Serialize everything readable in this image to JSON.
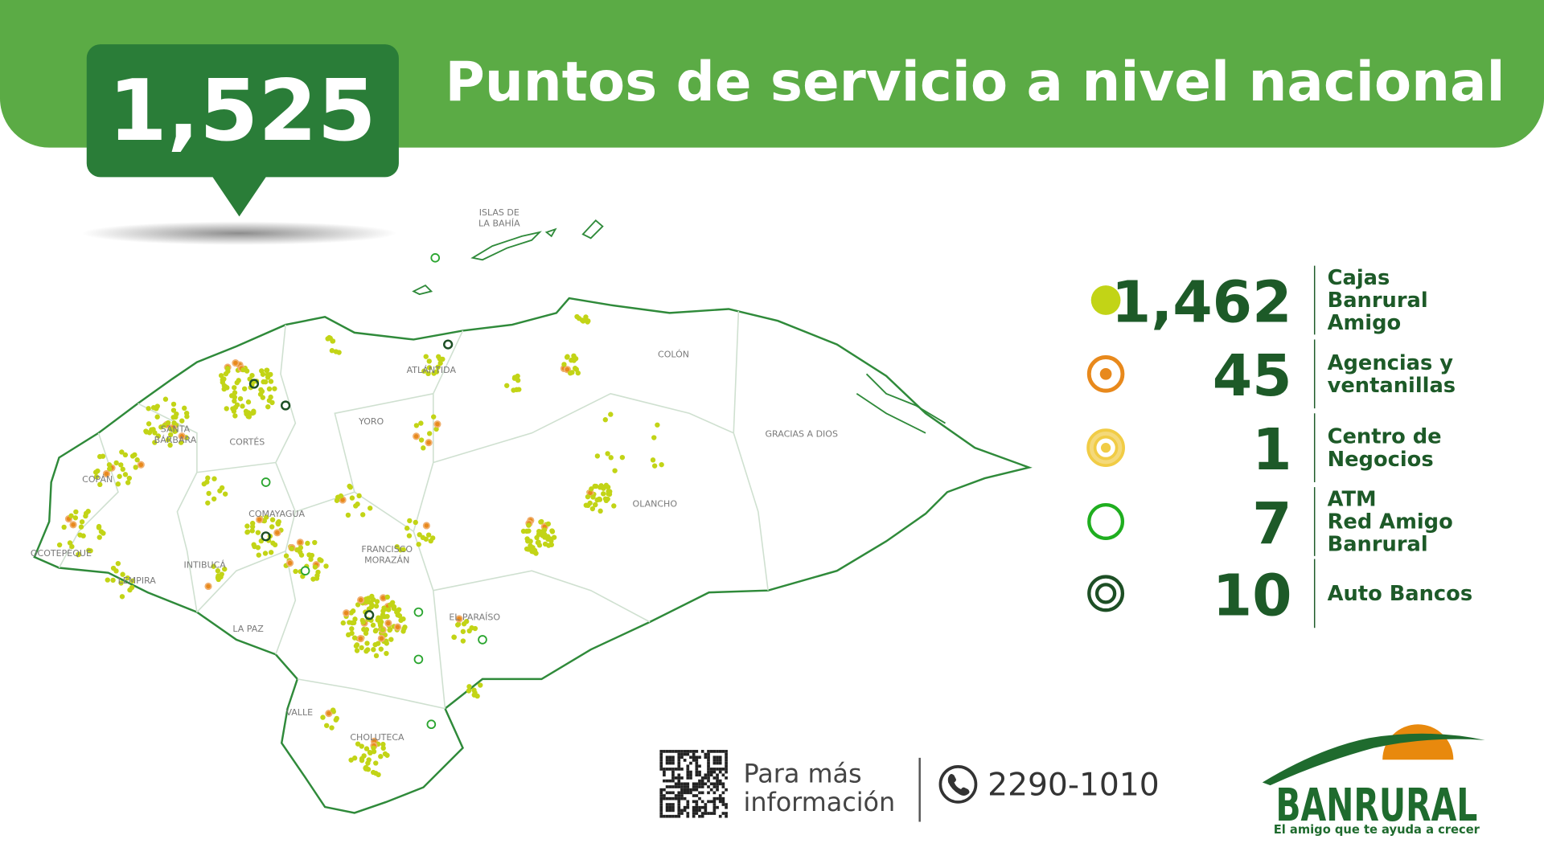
{
  "header": {
    "total": "1,525",
    "title": "Puntos de servicio a nivel nacional"
  },
  "map": {
    "regions": [
      [
        "ISLAS DE",
        "LA BAHÍA"
      ],
      [
        "ATLÁNTIDA"
      ],
      [
        "COLÓN"
      ],
      [
        "GRACIAS A DIOS"
      ],
      [
        "YORO"
      ],
      [
        "CORTÉS"
      ],
      [
        "SANTA",
        "BÁRBARA"
      ],
      [
        "COPÁN"
      ],
      [
        "OCOTEPEQUE"
      ],
      [
        "LEMPIRA"
      ],
      [
        "INTIBUCÁ"
      ],
      [
        "COMAYAGUA"
      ],
      [
        "FRANCISCO",
        "MORAZÁN"
      ],
      [
        "OLANCHO"
      ],
      [
        "EL PARAÍSO"
      ],
      [
        "LA PAZ"
      ],
      [
        "VALLE"
      ],
      [
        "CHOLUTECA"
      ]
    ]
  },
  "legend": [
    {
      "count": "1,462",
      "label": [
        "Cajas",
        "Banrural",
        "Amigo"
      ]
    },
    {
      "count": "45",
      "label": [
        "Agencias y",
        "ventanillas"
      ]
    },
    {
      "count": "1",
      "label": [
        "Centro de",
        "Negocios"
      ]
    },
    {
      "count": "7",
      "label": [
        "ATM",
        "Red Amigo",
        "Banrural"
      ]
    },
    {
      "count": "10",
      "label": [
        "Auto Bancos"
      ]
    }
  ],
  "footer": {
    "info": [
      "Para más",
      "información"
    ],
    "phone": "2290-1010",
    "brand": "BANRURAL",
    "slogan": "El amigo que te ayuda a crecer"
  }
}
